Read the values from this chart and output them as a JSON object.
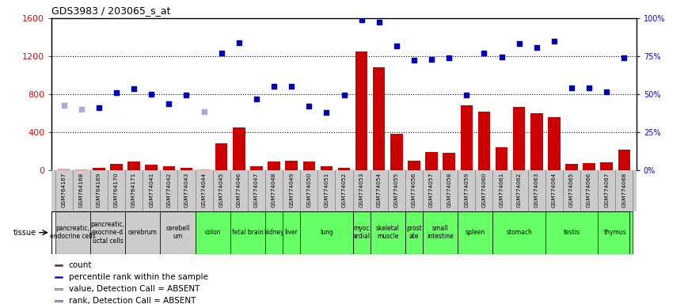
{
  "title": "GDS3983 / 203065_s_at",
  "gsm_labels": [
    "GSM764167",
    "GSM764168",
    "GSM764169",
    "GSM764170",
    "GSM764171",
    "GSM774041",
    "GSM774042",
    "GSM774043",
    "GSM774044",
    "GSM774045",
    "GSM774046",
    "GSM774047",
    "GSM774048",
    "GSM774049",
    "GSM774050",
    "GSM774051",
    "GSM774052",
    "GSM774053",
    "GSM774054",
    "GSM774055",
    "GSM774056",
    "GSM774057",
    "GSM774058",
    "GSM774059",
    "GSM774060",
    "GSM774061",
    "GSM774062",
    "GSM774063",
    "GSM774064",
    "GSM774065",
    "GSM774066",
    "GSM774067",
    "GSM774068"
  ],
  "count_values": [
    15,
    10,
    25,
    65,
    90,
    55,
    45,
    25,
    10,
    280,
    450,
    40,
    90,
    100,
    90,
    40,
    25,
    1250,
    1080,
    385,
    100,
    195,
    185,
    680,
    620,
    240,
    670,
    600,
    560,
    65,
    75,
    80,
    220
  ],
  "count_absent": [
    true,
    true,
    false,
    false,
    false,
    false,
    false,
    false,
    true,
    false,
    false,
    false,
    false,
    false,
    false,
    false,
    false,
    false,
    false,
    false,
    false,
    false,
    false,
    false,
    false,
    false,
    false,
    false,
    false,
    false,
    false,
    false,
    false
  ],
  "rank_values": [
    680,
    640,
    660,
    820,
    860,
    800,
    700,
    790,
    615,
    1230,
    1340,
    750,
    880,
    885,
    675,
    605,
    795,
    1585,
    1560,
    1310,
    1155,
    1165,
    1185,
    795,
    1235,
    1195,
    1335,
    1295,
    1355,
    870,
    870,
    825,
    1185
  ],
  "rank_absent": [
    true,
    true,
    false,
    false,
    false,
    false,
    false,
    false,
    true,
    false,
    false,
    false,
    false,
    false,
    false,
    false,
    false,
    false,
    false,
    false,
    false,
    false,
    false,
    false,
    false,
    false,
    false,
    false,
    false,
    false,
    false,
    false,
    false
  ],
  "tissue_groups": [
    {
      "label": "pancreatic,\nendocrine cells",
      "start": 0,
      "end": 1,
      "color": "#cccccc"
    },
    {
      "label": "pancreatic,\nexocrine-d\nuctal cells",
      "start": 2,
      "end": 3,
      "color": "#cccccc"
    },
    {
      "label": "cerebrum",
      "start": 4,
      "end": 5,
      "color": "#cccccc"
    },
    {
      "label": "cerebell\num",
      "start": 6,
      "end": 7,
      "color": "#cccccc"
    },
    {
      "label": "colon",
      "start": 8,
      "end": 9,
      "color": "#66ff66"
    },
    {
      "label": "fetal brain",
      "start": 10,
      "end": 11,
      "color": "#66ff66"
    },
    {
      "label": "kidney",
      "start": 12,
      "end": 12,
      "color": "#66ff66"
    },
    {
      "label": "liver",
      "start": 13,
      "end": 13,
      "color": "#66ff66"
    },
    {
      "label": "lung",
      "start": 14,
      "end": 16,
      "color": "#66ff66"
    },
    {
      "label": "myoc\nardial",
      "start": 17,
      "end": 17,
      "color": "#66ff66"
    },
    {
      "label": "skeletal\nmuscle",
      "start": 18,
      "end": 19,
      "color": "#66ff66"
    },
    {
      "label": "prost\nate",
      "start": 20,
      "end": 20,
      "color": "#66ff66"
    },
    {
      "label": "small\nintestine",
      "start": 21,
      "end": 22,
      "color": "#66ff66"
    },
    {
      "label": "spleen",
      "start": 23,
      "end": 24,
      "color": "#66ff66"
    },
    {
      "label": "stomach",
      "start": 25,
      "end": 27,
      "color": "#66ff66"
    },
    {
      "label": "testis",
      "start": 28,
      "end": 30,
      "color": "#66ff66"
    },
    {
      "label": "thymus",
      "start": 31,
      "end": 32,
      "color": "#66ff66"
    }
  ],
  "ylim_left": [
    0,
    1600
  ],
  "ylim_right": [
    0,
    100
  ],
  "yticks_left": [
    0,
    400,
    800,
    1200,
    1600
  ],
  "yticks_right": [
    0,
    25,
    50,
    75,
    100
  ],
  "bar_color_present": "#cc0000",
  "bar_color_absent": "#ffaaaa",
  "rank_color_present": "#0000bb",
  "rank_color_absent": "#aaaadd",
  "legend_items": [
    {
      "label": "count",
      "color": "#cc0000"
    },
    {
      "label": "percentile rank within the sample",
      "color": "#0000bb"
    },
    {
      "label": "value, Detection Call = ABSENT",
      "color": "#ffaaaa"
    },
    {
      "label": "rank, Detection Call = ABSENT",
      "color": "#aaaadd"
    }
  ],
  "bg_color": "#ffffff"
}
